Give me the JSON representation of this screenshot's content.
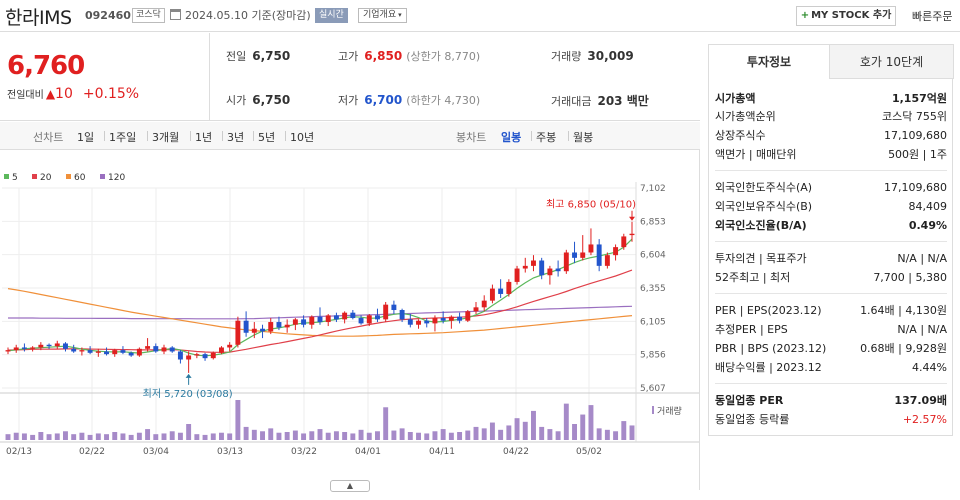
{
  "header": {
    "company_name": "한라IMS",
    "code": "092460",
    "market": "코스닥",
    "date_text": "2024.05.10 기준(장마감)",
    "realtime_label": "실시간",
    "company_info_label": "기업개요",
    "mystock_label": "MY STOCK 추가",
    "quick_order_label": "빠른주문"
  },
  "price": {
    "current": "6,760",
    "change_label": "전일대비",
    "change_value": "10",
    "change_pct": "+0.15%",
    "quotes": [
      {
        "key": "전일",
        "value": "6,750",
        "color": "",
        "sub": ""
      },
      {
        "key": "고가",
        "value": "6,850",
        "color": "red",
        "sub": "(상한가 8,770)"
      },
      {
        "key": "거래량",
        "value": "30,009",
        "color": "",
        "sub": ""
      },
      {
        "key": "시가",
        "value": "6,750",
        "color": "",
        "sub": ""
      },
      {
        "key": "저가",
        "value": "6,700",
        "color": "blue",
        "sub": "(하한가 4,730)"
      },
      {
        "key": "거래대금",
        "value": "203 백만",
        "color": "",
        "sub": ""
      }
    ]
  },
  "period_tabs": {
    "line_label": "선차트",
    "line_items": [
      "1일",
      "1주일",
      "3개월",
      "1년",
      "3년",
      "5년",
      "10년"
    ],
    "candle_label": "봉차트",
    "candle_items": [
      "일봉",
      "주봉",
      "월봉"
    ],
    "active": "일봉"
  },
  "chart_data": {
    "type": "candlestick",
    "ma_legend": [
      {
        "name": "5",
        "color": "#5cb85c"
      },
      {
        "name": "20",
        "color": "#e0404a"
      },
      {
        "name": "60",
        "color": "#f0903a"
      },
      {
        "name": "120",
        "color": "#9a6fc0"
      }
    ],
    "y_ticks": [
      "7,102",
      "6,853",
      "6,604",
      "6,355",
      "6,105",
      "5,856",
      "5,607"
    ],
    "ylim": [
      5607,
      7102
    ],
    "x_ticks": [
      "02/13",
      "02/22",
      "03/04",
      "03/13",
      "03/22",
      "04/01",
      "04/11",
      "04/22",
      "05/02"
    ],
    "high_annotation": "최고 6,850 (05/10)",
    "low_annotation": "최저 5,720 (03/08)",
    "volume_label": "거래량",
    "candles": [
      [
        5880,
        5910,
        5860,
        5890
      ],
      [
        5890,
        5930,
        5870,
        5910
      ],
      [
        5910,
        5940,
        5880,
        5900
      ],
      [
        5900,
        5920,
        5880,
        5910
      ],
      [
        5910,
        5950,
        5890,
        5930
      ],
      [
        5930,
        5940,
        5900,
        5920
      ],
      [
        5920,
        5960,
        5900,
        5940
      ],
      [
        5940,
        5950,
        5880,
        5900
      ],
      [
        5900,
        5930,
        5870,
        5880
      ],
      [
        5880,
        5910,
        5850,
        5890
      ],
      [
        5890,
        5920,
        5860,
        5870
      ],
      [
        5870,
        5900,
        5840,
        5880
      ],
      [
        5880,
        5910,
        5850,
        5860
      ],
      [
        5860,
        5900,
        5840,
        5890
      ],
      [
        5890,
        5920,
        5860,
        5870
      ],
      [
        5870,
        5880,
        5840,
        5850
      ],
      [
        5850,
        5910,
        5840,
        5900
      ],
      [
        5900,
        5980,
        5880,
        5920
      ],
      [
        5920,
        5940,
        5870,
        5880
      ],
      [
        5880,
        5930,
        5860,
        5910
      ],
      [
        5910,
        5920,
        5870,
        5880
      ],
      [
        5880,
        5890,
        5790,
        5820
      ],
      [
        5820,
        5880,
        5720,
        5850
      ],
      [
        5850,
        5870,
        5830,
        5860
      ],
      [
        5860,
        5870,
        5810,
        5830
      ],
      [
        5830,
        5880,
        5820,
        5870
      ],
      [
        5870,
        5920,
        5860,
        5910
      ],
      [
        5910,
        5950,
        5880,
        5930
      ],
      [
        5930,
        6140,
        5910,
        6110
      ],
      [
        6110,
        6180,
        5990,
        6020
      ],
      [
        6020,
        6100,
        5980,
        6050
      ],
      [
        6050,
        6080,
        5980,
        6030
      ],
      [
        6030,
        6130,
        6010,
        6100
      ],
      [
        6100,
        6140,
        6040,
        6060
      ],
      [
        6060,
        6120,
        6020,
        6080
      ],
      [
        6080,
        6130,
        6040,
        6120
      ],
      [
        6120,
        6150,
        6060,
        6080
      ],
      [
        6080,
        6150,
        6050,
        6140
      ],
      [
        6140,
        6210,
        6080,
        6100
      ],
      [
        6100,
        6160,
        6070,
        6150
      ],
      [
        6150,
        6170,
        6100,
        6120
      ],
      [
        6120,
        6180,
        6090,
        6170
      ],
      [
        6170,
        6190,
        6120,
        6130
      ],
      [
        6130,
        6150,
        6080,
        6090
      ],
      [
        6090,
        6160,
        6070,
        6150
      ],
      [
        6150,
        6200,
        6100,
        6120
      ],
      [
        6120,
        6250,
        6100,
        6230
      ],
      [
        6230,
        6260,
        6160,
        6190
      ],
      [
        6190,
        6200,
        6100,
        6120
      ],
      [
        6120,
        6160,
        6060,
        6080
      ],
      [
        6080,
        6120,
        6050,
        6110
      ],
      [
        6110,
        6130,
        6060,
        6090
      ],
      [
        6090,
        6150,
        6030,
        6130
      ],
      [
        6130,
        6180,
        6090,
        6110
      ],
      [
        6110,
        6150,
        6050,
        6140
      ],
      [
        6140,
        6170,
        6090,
        6110
      ],
      [
        6110,
        6190,
        6100,
        6180
      ],
      [
        6180,
        6250,
        6160,
        6210
      ],
      [
        6210,
        6300,
        6180,
        6260
      ],
      [
        6260,
        6380,
        6240,
        6350
      ],
      [
        6350,
        6420,
        6280,
        6310
      ],
      [
        6310,
        6420,
        6290,
        6400
      ],
      [
        6400,
        6520,
        6380,
        6500
      ],
      [
        6500,
        6580,
        6470,
        6520
      ],
      [
        6520,
        6600,
        6480,
        6560
      ],
      [
        6560,
        6580,
        6420,
        6450
      ],
      [
        6450,
        6520,
        6380,
        6500
      ],
      [
        6500,
        6560,
        6440,
        6480
      ],
      [
        6480,
        6640,
        6460,
        6620
      ],
      [
        6620,
        6700,
        6540,
        6580
      ],
      [
        6580,
        6750,
        6560,
        6620
      ],
      [
        6620,
        6800,
        6600,
        6680
      ],
      [
        6680,
        6720,
        6480,
        6520
      ],
      [
        6520,
        6620,
        6500,
        6600
      ],
      [
        6600,
        6680,
        6560,
        6660
      ],
      [
        6660,
        6760,
        6640,
        6740
      ],
      [
        6750,
        6850,
        6700,
        6760
      ]
    ],
    "ma5": [
      5885,
      5892,
      5900,
      5905,
      5908,
      5912,
      5916,
      5920,
      5910,
      5898,
      5888,
      5882,
      5878,
      5876,
      5878,
      5872,
      5868,
      5876,
      5886,
      5894,
      5902,
      5892,
      5868,
      5852,
      5848,
      5852,
      5862,
      5876,
      5932,
      5968,
      6004,
      6032,
      6048,
      6056,
      6068,
      6084,
      6092,
      6096,
      6100,
      6110,
      6120,
      6132,
      6140,
      6136,
      6128,
      6130,
      6146,
      6158,
      6164,
      6154,
      6134,
      6108,
      6100,
      6104,
      6112,
      6120,
      6132,
      6154,
      6180,
      6224,
      6264,
      6306,
      6352,
      6394,
      6430,
      6452,
      6470,
      6492,
      6518,
      6544,
      6566,
      6582,
      6594,
      6608,
      6622,
      6660,
      6720
    ],
    "ma20": [
      5890,
      5892,
      5894,
      5896,
      5897,
      5898,
      5898,
      5899,
      5899,
      5899,
      5898,
      5897,
      5896,
      5895,
      5894,
      5893,
      5892,
      5892,
      5892,
      5893,
      5893,
      5891,
      5886,
      5880,
      5876,
      5874,
      5874,
      5875,
      5886,
      5896,
      5908,
      5920,
      5932,
      5942,
      5954,
      5966,
      5978,
      5990,
      6004,
      6018,
      6032,
      6046,
      6058,
      6070,
      6082,
      6092,
      6102,
      6110,
      6118,
      6122,
      6126,
      6128,
      6130,
      6132,
      6134,
      6136,
      6140,
      6146,
      6154,
      6166,
      6180,
      6196,
      6214,
      6234,
      6254,
      6272,
      6290,
      6308,
      6328,
      6350,
      6370,
      6390,
      6408,
      6426,
      6444,
      6466,
      6488
    ],
    "ma60": [
      6350,
      6340,
      6330,
      6318,
      6306,
      6294,
      6282,
      6270,
      6258,
      6246,
      6234,
      6222,
      6210,
      6198,
      6186,
      6174,
      6164,
      6154,
      6144,
      6134,
      6124,
      6114,
      6104,
      6094,
      6084,
      6074,
      6064,
      6056,
      6048,
      6042,
      6036,
      6030,
      6024,
      6018,
      6012,
      6008,
      6004,
      6000,
      5998,
      5996,
      5994,
      5994,
      5994,
      5996,
      5998,
      6000,
      6004,
      6008,
      6010,
      6012,
      6014,
      6016,
      6018,
      6020,
      6024,
      6028,
      6032,
      6036,
      6040,
      6046,
      6052,
      6058,
      6064,
      6070,
      6076,
      6082,
      6088,
      6094,
      6100,
      6106,
      6112,
      6118,
      6124,
      6130,
      6136,
      6142,
      6148
    ],
    "ma120": [
      6130,
      6130,
      6130,
      6130,
      6129,
      6129,
      6129,
      6128,
      6128,
      6128,
      6128,
      6127,
      6127,
      6127,
      6127,
      6126,
      6126,
      6126,
      6125,
      6125,
      6125,
      6125,
      6125,
      6124,
      6124,
      6124,
      6124,
      6124,
      6124,
      6125,
      6126,
      6128,
      6130,
      6132,
      6134,
      6136,
      6138,
      6140,
      6142,
      6144,
      6146,
      6148,
      6150,
      6152,
      6154,
      6156,
      6158,
      6160,
      6162,
      6164,
      6166,
      6168,
      6170,
      6172,
      6174,
      6176,
      6178,
      6180,
      6182,
      6184,
      6186,
      6188,
      6190,
      6192,
      6194,
      6196,
      6198,
      6200,
      6202,
      6204,
      6206,
      6208,
      6210,
      6212,
      6214,
      6216,
      6218
    ],
    "volumes": [
      8,
      10,
      9,
      7,
      11,
      8,
      9,
      12,
      8,
      10,
      7,
      9,
      8,
      11,
      9,
      7,
      10,
      15,
      8,
      9,
      12,
      10,
      22,
      8,
      7,
      9,
      10,
      9,
      55,
      18,
      14,
      12,
      16,
      10,
      11,
      13,
      9,
      12,
      15,
      10,
      12,
      11,
      9,
      14,
      10,
      12,
      45,
      13,
      16,
      11,
      10,
      9,
      12,
      15,
      10,
      11,
      13,
      18,
      16,
      24,
      14,
      20,
      30,
      25,
      40,
      18,
      15,
      12,
      50,
      22,
      35,
      48,
      16,
      14,
      12,
      26,
      20
    ]
  },
  "invest_info": {
    "tab_active": "투자정보",
    "tab_inactive": "호가 10단계",
    "rows": [
      {
        "k": "시가총액",
        "v": "1,157억원",
        "bold": true
      },
      {
        "k": "시가총액순위",
        "v": "코스닥 755위"
      },
      {
        "k": "상장주식수",
        "v": "17,109,680"
      },
      {
        "k": "액면가 | 매매단위",
        "v": "500원 | 1주"
      },
      {
        "k": "외국인한도주식수(A)",
        "v": "17,109,680"
      },
      {
        "k": "외국인보유주식수(B)",
        "v": "84,409"
      },
      {
        "k": "외국인소진율(B/A)",
        "v": "0.49%",
        "bold": true
      },
      {
        "k": "투자의견 | 목표주가",
        "v": "N/A | N/A"
      },
      {
        "k": "52주최고 | 최저",
        "v": "7,700 | 5,380"
      },
      {
        "k": "PER | EPS(2023.12)",
        "v": "1.64배 | 4,130원"
      },
      {
        "k": "추정PER | EPS",
        "v": "N/A | N/A"
      },
      {
        "k": "PBR | BPS (2023.12)",
        "v": "0.68배 | 9,928원"
      },
      {
        "k": "배당수익률 | 2023.12",
        "v": "4.44%"
      },
      {
        "k": "동일업종 PER",
        "v": "137.09배",
        "bold": true
      },
      {
        "k": "동일업종 등락률",
        "v": "+2.57%",
        "red": true
      }
    ]
  }
}
